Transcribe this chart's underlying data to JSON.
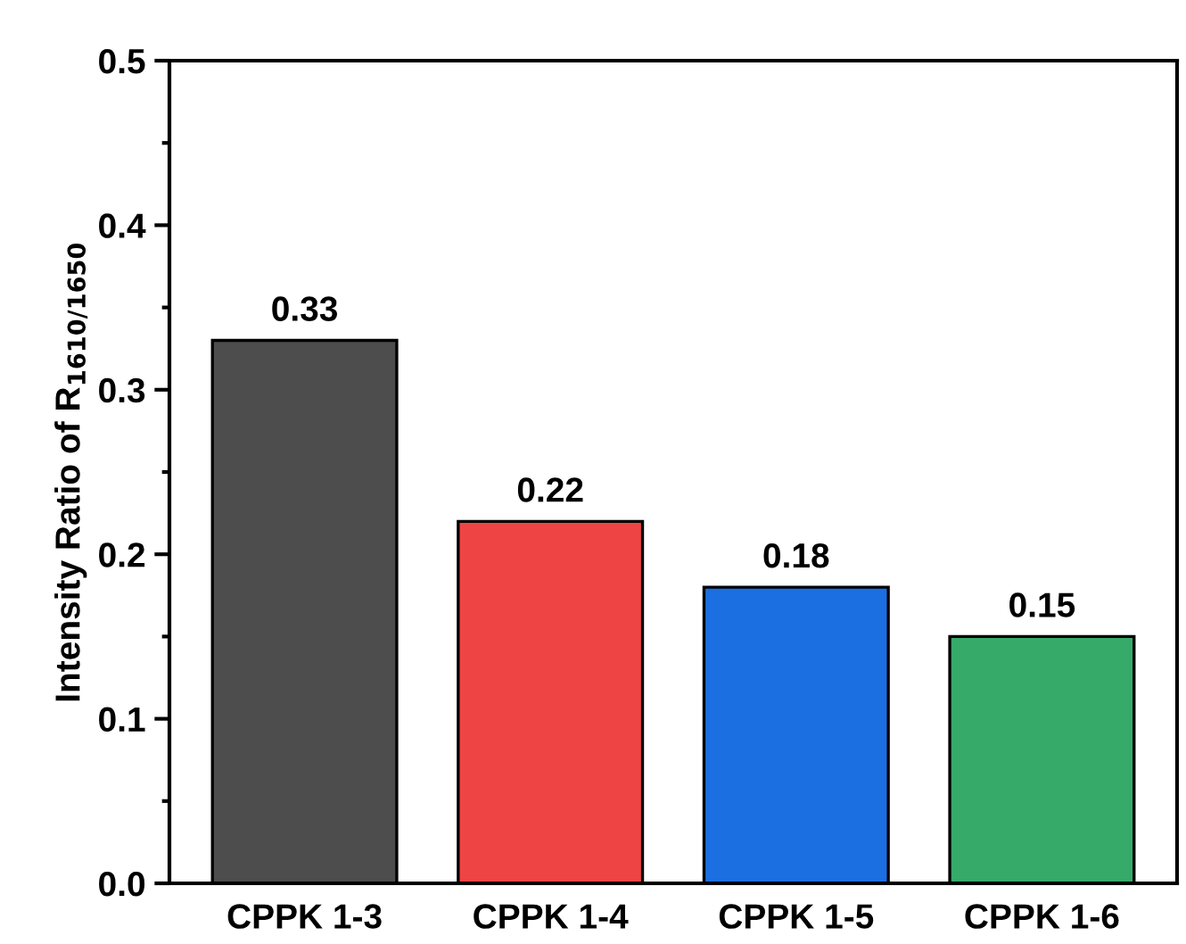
{
  "chart_data": {
    "type": "bar",
    "ylabel": "Intensity Ratio of R$_{1610/1650}$",
    "categories": [
      "CPPK 1-3",
      "CPPK 1-4",
      "CPPK 1-5",
      "CPPK 1-6"
    ],
    "values": [
      0.33,
      0.22,
      0.18,
      0.15
    ],
    "colors": [
      "#4d4d4d",
      "#ef4444",
      "#1b6fe0",
      "#36aa68"
    ],
    "ylim": [
      0,
      0.5
    ],
    "yticks": [
      {
        "value": 0,
        "label": "0.0"
      },
      0.1,
      0.2,
      0.3,
      0.4,
      0.5
    ],
    "data_labels": true,
    "grid": false,
    "legend": false
  }
}
